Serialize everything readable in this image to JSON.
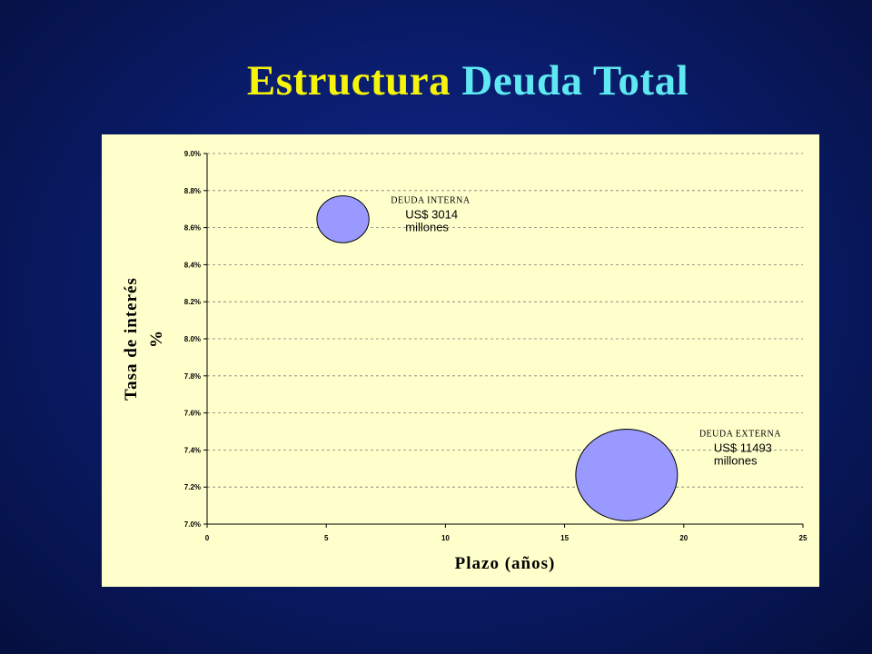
{
  "slide": {
    "title_part1": "Estructura",
    "title_part2": "Deuda Total",
    "title_color1": "#f6f40c",
    "title_color2": "#5fe8f2"
  },
  "chart_data": {
    "type": "bubble",
    "xlabel": "Plazo  (años)",
    "ylabel_line1": "Tasa de interés",
    "ylabel_line2": "%",
    "xlim": [
      0,
      25
    ],
    "ylim": [
      7.0,
      9.0
    ],
    "x_ticks": [
      "0",
      "5",
      "10",
      "15",
      "20",
      "25"
    ],
    "y_ticks": [
      "7.0%",
      "7.2%",
      "7.4%",
      "7.6%",
      "7.8%",
      "8.0%",
      "8.2%",
      "8.4%",
      "8.6%",
      "8.8%",
      "9.0%"
    ],
    "grid": "horizontal-dashed",
    "bubble_color": "#9999ff",
    "series": [
      {
        "name": "DEUDA INTERNA",
        "x": 5.7,
        "y": 8.645,
        "size": 3014,
        "label_line1": "US$ 3014",
        "label_line2": "millones"
      },
      {
        "name": "DEUDA EXTERNA",
        "x": 17.6,
        "y": 7.265,
        "size": 11493,
        "label_line1": "US$ 11493",
        "label_line2": "millones"
      }
    ]
  }
}
